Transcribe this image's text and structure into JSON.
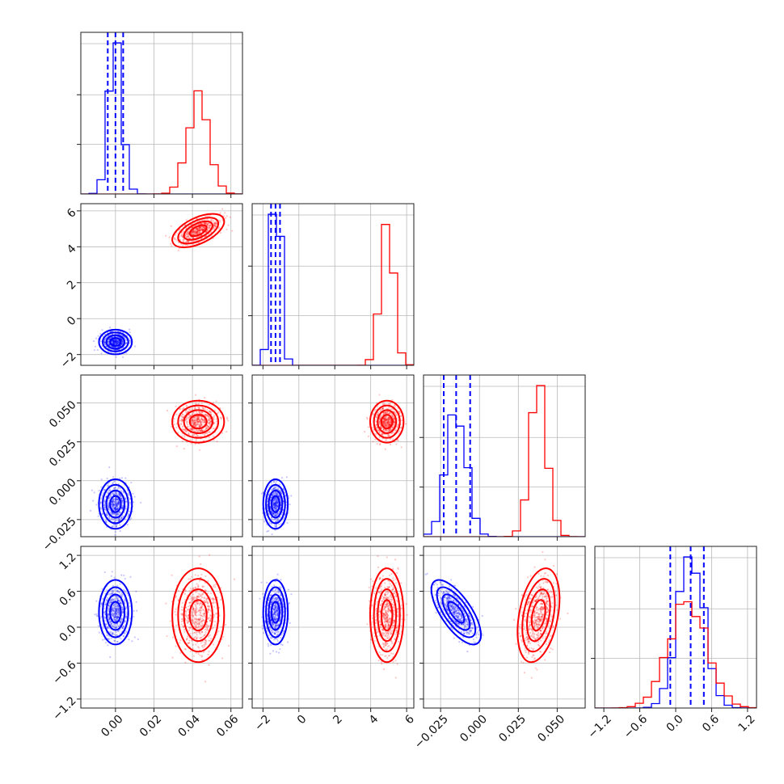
{
  "chart_data": {
    "type": "corner",
    "colors": {
      "series_a": "#0000ff",
      "series_b": "#ff0000"
    },
    "grid": true,
    "axes": [
      {
        "label": "",
        "range": [
          -0.018,
          0.066
        ],
        "ticks": [
          0.0,
          0.02,
          0.04,
          0.06
        ],
        "tick_labels": [
          "0.00",
          "0.02",
          "0.04",
          "0.06"
        ]
      },
      {
        "label": "",
        "range": [
          -2.6,
          6.4
        ],
        "ticks": [
          -2,
          0,
          2,
          4,
          6
        ],
        "tick_labels": [
          "−2",
          "0",
          "2",
          "4",
          "6"
        ]
      },
      {
        "label": "",
        "range": [
          -0.036,
          0.068
        ],
        "ticks": [
          -0.025,
          0.0,
          0.025,
          0.05
        ],
        "tick_labels": [
          "−0.025",
          "0.000",
          "0.025",
          "0.050"
        ]
      },
      {
        "label": "",
        "range": [
          -1.35,
          1.35
        ],
        "ticks": [
          -1.2,
          -0.6,
          0.0,
          0.6,
          1.2
        ],
        "tick_labels": [
          "−1.2",
          "−0.6",
          "0.0",
          "0.6",
          "1.2"
        ]
      }
    ],
    "series": [
      {
        "name": "",
        "color": "#0000ff",
        "mean": [
          0.0,
          -1.3,
          -0.015,
          0.25
        ],
        "std": [
          0.0035,
          0.28,
          0.0065,
          0.22
        ],
        "quantiles": [
          [
            -0.004,
            0.0,
            0.004
          ],
          [
            -1.55,
            -1.3,
            -1.05
          ],
          [
            -0.023,
            -0.015,
            -0.006
          ],
          [
            -0.09,
            0.25,
            0.47
          ]
        ],
        "correlations": [
          [
            2,
            3,
            -0.7
          ]
        ]
      },
      {
        "name": "",
        "color": "#ff0000",
        "mean": [
          0.043,
          4.9,
          0.038,
          0.2
        ],
        "std": [
          0.0055,
          0.38,
          0.0055,
          0.32
        ],
        "quantiles": [],
        "correlations": [
          [
            0,
            1,
            0.55
          ],
          [
            2,
            3,
            0.35
          ]
        ]
      }
    ]
  }
}
